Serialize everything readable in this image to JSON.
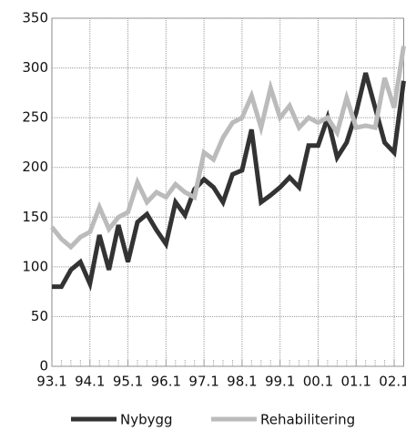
{
  "chart_data": {
    "type": "line",
    "categories": [
      "93.1",
      null,
      null,
      null,
      "94.1",
      null,
      null,
      null,
      "95.1",
      null,
      null,
      null,
      "96.1",
      null,
      null,
      null,
      "97.1",
      null,
      null,
      null,
      "98.1",
      null,
      null,
      null,
      "99.1",
      null,
      null,
      null,
      "00.1",
      null,
      null,
      null,
      "01.1",
      null,
      null,
      null,
      "02.1",
      null
    ],
    "series": [
      {
        "name": "Nybygg",
        "color": "#333333",
        "values": [
          80,
          80,
          97,
          105,
          83,
          132,
          97,
          142,
          105,
          145,
          153,
          137,
          123,
          165,
          152,
          178,
          188,
          180,
          165,
          193,
          197,
          238,
          165,
          172,
          180,
          190,
          180,
          222,
          222,
          250,
          210,
          225,
          255,
          295,
          260,
          225,
          215,
          287
        ]
      },
      {
        "name": "Rehabilitering",
        "color": "#bbbbbb",
        "values": [
          140,
          128,
          120,
          130,
          135,
          160,
          138,
          150,
          155,
          185,
          165,
          175,
          170,
          183,
          175,
          170,
          215,
          208,
          230,
          245,
          250,
          272,
          240,
          280,
          250,
          262,
          240,
          250,
          245,
          250,
          235,
          270,
          240,
          242,
          240,
          290,
          260,
          322
        ]
      }
    ],
    "ylim": [
      0,
      350
    ],
    "yticks": [
      0,
      50,
      100,
      150,
      200,
      250,
      300,
      350
    ],
    "grid": true
  }
}
